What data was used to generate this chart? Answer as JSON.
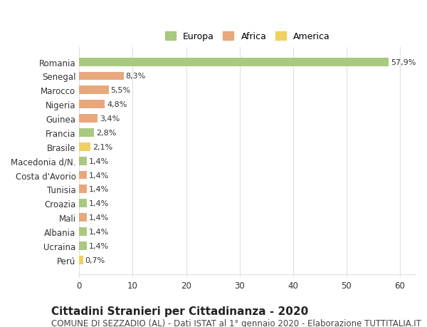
{
  "categories": [
    "Romania",
    "Senegal",
    "Marocco",
    "Nigeria",
    "Guinea",
    "Francia",
    "Brasile",
    "Macedonia d/N.",
    "Costa d'Avorio",
    "Tunisia",
    "Croazia",
    "Mali",
    "Albania",
    "Ucraina",
    "Perú"
  ],
  "values": [
    57.9,
    8.3,
    5.5,
    4.8,
    3.4,
    2.8,
    2.1,
    1.4,
    1.4,
    1.4,
    1.4,
    1.4,
    1.4,
    1.4,
    0.7
  ],
  "labels": [
    "57,9%",
    "8,3%",
    "5,5%",
    "4,8%",
    "3,4%",
    "2,8%",
    "2,1%",
    "1,4%",
    "1,4%",
    "1,4%",
    "1,4%",
    "1,4%",
    "1,4%",
    "1,4%",
    "0,7%"
  ],
  "continents": [
    "Europa",
    "Africa",
    "Africa",
    "Africa",
    "Africa",
    "Europa",
    "America",
    "Europa",
    "Africa",
    "Africa",
    "Europa",
    "Africa",
    "Europa",
    "Europa",
    "America"
  ],
  "colors": {
    "Europa": "#a8c97f",
    "Africa": "#e8a87c",
    "America": "#f0d060"
  },
  "legend": {
    "Europa": "#a8c97f",
    "Africa": "#e8a87c",
    "America": "#f0d060"
  },
  "xlim": [
    0,
    63
  ],
  "xticks": [
    0,
    10,
    20,
    30,
    40,
    50,
    60
  ],
  "title": "Cittadini Stranieri per Cittadinanza - 2020",
  "subtitle": "COMUNE DI SEZZADIO (AL) - Dati ISTAT al 1° gennaio 2020 - Elaborazione TUTTITALIA.IT",
  "background_color": "#ffffff",
  "grid_color": "#e0e0e0",
  "bar_height": 0.6,
  "title_fontsize": 11,
  "subtitle_fontsize": 8.5,
  "label_fontsize": 8,
  "tick_fontsize": 8.5,
  "legend_fontsize": 9
}
